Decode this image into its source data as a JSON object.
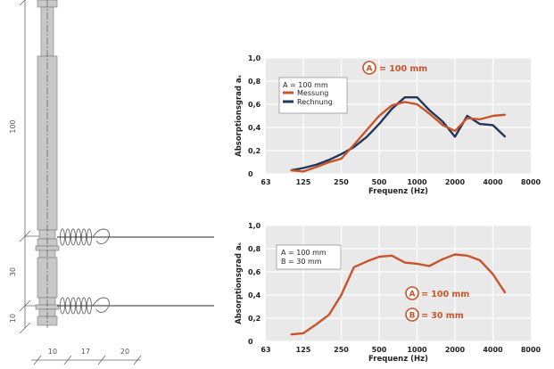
{
  "drawing": {
    "dimensions_vertical": [
      "100",
      "30",
      "10"
    ],
    "dimensions_horizontal": [
      "10",
      "17",
      "20"
    ]
  },
  "colors": {
    "measured": "#c9542a",
    "computed": "#23375a",
    "plot_background": "#e9e9e9",
    "grid": "#ffffff",
    "steel": "#c8c8c8"
  },
  "chart_data": [
    {
      "type": "line",
      "ylabel": "Absorptionsgrad aₛ",
      "xlabel": "Frequenz (Hz)",
      "x_scale": "log",
      "x_ticks": [
        63,
        125,
        250,
        500,
        1000,
        2000,
        4000,
        8000
      ],
      "x_tick_labels": [
        "63",
        "125",
        "250",
        "500",
        "1000",
        "2000",
        "4000",
        "8000"
      ],
      "y_ticks": [
        0,
        0.2,
        0.4,
        0.6,
        0.8,
        1.0
      ],
      "y_tick_labels": [
        "0",
        "0,2",
        "0,4",
        "0,6",
        "0,8",
        "1,0"
      ],
      "ylim": [
        0,
        1.0
      ],
      "grid": true,
      "legend_position": "top-left",
      "legend": {
        "header": "A = 100 mm",
        "items": [
          "Messung",
          "Rechnung"
        ]
      },
      "annotation": {
        "letter": "A",
        "text": "= 100 mm",
        "position": "top-center"
      },
      "series": [
        {
          "name": "Rechnung",
          "color": "#23375a",
          "x": [
            100,
            125,
            160,
            200,
            250,
            315,
            400,
            500,
            630,
            800,
            1000,
            1250,
            1600,
            2000,
            2500,
            3150,
            4000,
            5000
          ],
          "y": [
            0.03,
            0.05,
            0.08,
            0.12,
            0.17,
            0.23,
            0.32,
            0.43,
            0.56,
            0.66,
            0.66,
            0.55,
            0.45,
            0.32,
            0.5,
            0.43,
            0.42,
            0.32
          ]
        },
        {
          "name": "Messung",
          "color": "#c9542a",
          "x": [
            100,
            125,
            160,
            200,
            250,
            315,
            400,
            500,
            630,
            800,
            1000,
            1250,
            1600,
            2000,
            2500,
            3150,
            4000,
            5000
          ],
          "y": [
            0.03,
            0.02,
            0.06,
            0.1,
            0.13,
            0.25,
            0.38,
            0.5,
            0.59,
            0.62,
            0.6,
            0.52,
            0.42,
            0.37,
            0.48,
            0.47,
            0.5,
            0.51
          ]
        }
      ]
    },
    {
      "type": "line",
      "ylabel": "Absorptionsgrad aₛ",
      "xlabel": "Frequenz (Hz)",
      "x_scale": "log",
      "x_ticks": [
        63,
        125,
        250,
        500,
        1000,
        2000,
        4000,
        8000
      ],
      "x_tick_labels": [
        "63",
        "125",
        "250",
        "500",
        "1000",
        "2000",
        "4000",
        "8000"
      ],
      "y_ticks": [
        0,
        0.2,
        0.4,
        0.6,
        0.8,
        1.0
      ],
      "y_tick_labels": [
        "0",
        "0,2",
        "0,4",
        "0,6",
        "0,8",
        "1,0"
      ],
      "ylim": [
        0,
        1.0
      ],
      "grid": true,
      "legend_position": "top-left",
      "legend": {
        "lines": [
          "A = 100 mm",
          "B =  30 mm"
        ]
      },
      "annotations": [
        {
          "letter": "A",
          "text": "= 100 mm"
        },
        {
          "letter": "B",
          "text": "= 30 mm"
        }
      ],
      "series": [
        {
          "color": "#c9542a",
          "x": [
            100,
            125,
            160,
            200,
            250,
            315,
            400,
            500,
            630,
            800,
            1000,
            1250,
            1600,
            2000,
            2500,
            3150,
            4000,
            5000
          ],
          "y": [
            0.06,
            0.07,
            0.15,
            0.23,
            0.4,
            0.64,
            0.69,
            0.73,
            0.74,
            0.68,
            0.67,
            0.65,
            0.71,
            0.75,
            0.74,
            0.7,
            0.58,
            0.42
          ]
        }
      ]
    }
  ]
}
